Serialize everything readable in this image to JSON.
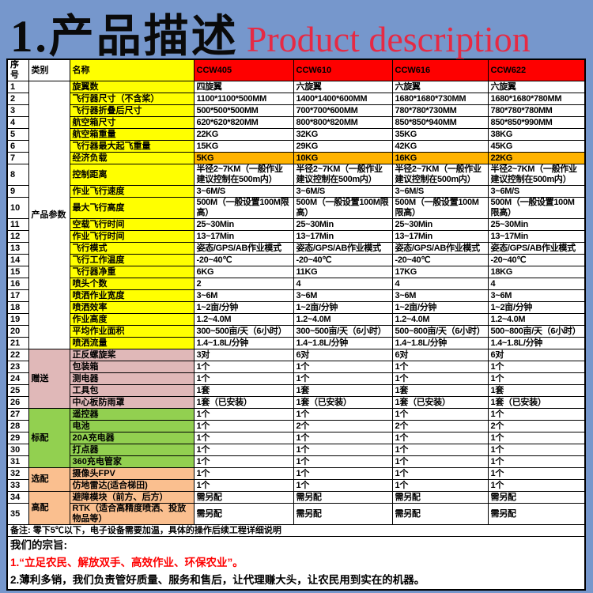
{
  "page": {
    "background": "#7697CC"
  },
  "title": {
    "zh": "1.产品描述",
    "en": "Product description",
    "en_color": "#E62A44"
  },
  "table": {
    "header": {
      "no": "序号",
      "category": "类别",
      "name": "名称",
      "models": [
        "CCW405",
        "CCW610",
        "CCW616",
        "CCW622"
      ],
      "model_bg": "#FE0000",
      "name_bg": "#FFFF00"
    },
    "groups": {
      "param": {
        "cat_bg": "#FFFFFF",
        "name_bg": "#FFFF00"
      },
      "gift": {
        "cat_bg": "#E0B8B8",
        "name_bg": "#E0B8B8"
      },
      "standard": {
        "cat_bg": "#92D050",
        "name_bg": "#92D050"
      },
      "optional": {
        "cat_bg": "#FABF8F",
        "name_bg": "#FABF8F"
      },
      "high": {
        "cat_bg": "#FABF8F",
        "name_bg": "#FABF8F"
      }
    },
    "categories": [
      {
        "label": "产品参数",
        "start": 1,
        "span": 21,
        "group": "param"
      },
      {
        "label": "赠送",
        "start": 22,
        "span": 5,
        "group": "gift"
      },
      {
        "label": "标配",
        "start": 27,
        "span": 5,
        "group": "standard"
      },
      {
        "label": "选配",
        "start": 32,
        "span": 2,
        "group": "optional"
      },
      {
        "label": "高配",
        "start": 34,
        "span": 2,
        "group": "high"
      }
    ],
    "hot_row": {
      "bg": "#FFB300",
      "text_color": "#FE0000"
    },
    "rows": [
      {
        "no": "1",
        "name": "旋翼数",
        "group": "param",
        "center": true,
        "values": [
          "四旋翼",
          "六旋翼",
          "六旋翼",
          "六旋翼"
        ]
      },
      {
        "no": "2",
        "name": "飞行器尺寸（不含桨）",
        "group": "param",
        "values": [
          "1100*1100*500MM",
          "1400*1400*600MM",
          "1680*1680*730MM",
          "1680*1680*780MM"
        ]
      },
      {
        "no": "3",
        "name": "飞行器折叠后尺寸",
        "group": "param",
        "values": [
          "500*500*500MM",
          "700*700*600MM",
          "780*780*730MM",
          "780*780*780MM"
        ]
      },
      {
        "no": "4",
        "name": "航空箱尺寸",
        "group": "param",
        "values": [
          "620*620*820MM",
          "800*800*820MM",
          "850*850*940MM",
          "850*850*990MM"
        ]
      },
      {
        "no": "5",
        "name": "航空箱重量",
        "group": "param",
        "values": [
          "22KG",
          "32KG",
          "35KG",
          "38KG"
        ]
      },
      {
        "no": "6",
        "name": "飞行器最大起飞重量",
        "group": "param",
        "values": [
          "15KG",
          "29KG",
          "42KG",
          "45KG"
        ]
      },
      {
        "no": "7",
        "name": "经济负载",
        "group": "param",
        "hot": true,
        "values": [
          "5KG",
          "10KG",
          "16KG",
          "22KG"
        ]
      },
      {
        "no": "8",
        "name": "控制距离",
        "group": "param",
        "values": [
          "半径2~7KM（一般作业建议控制在500m内）",
          "半径2~7KM（一般作业建议控制在500m内）",
          "半径2~7KM（一般作业建议控制在500m内）",
          "半径2~7KM（一般作业建议控制在500m内）"
        ]
      },
      {
        "no": "9",
        "name": "作业飞行速度",
        "group": "param",
        "values": [
          "3~6M/S",
          "3~6M/S",
          "3~6M/S",
          "3~6M/S"
        ]
      },
      {
        "no": "10",
        "name": "最大飞行高度",
        "group": "param",
        "values": [
          "500M（一般设置100M限高）",
          "500M（一般设置100M限高）",
          "500M（一般设置100M限高）",
          "500M（一般设置100M限高）"
        ]
      },
      {
        "no": "11",
        "name": "空载飞行时间",
        "group": "param",
        "values": [
          "25~30Min",
          "25~30Min",
          "25~30Min",
          "25~30Min"
        ]
      },
      {
        "no": "12",
        "name": "作业飞行时间",
        "group": "param",
        "values": [
          "13~17Min",
          "13~17Min",
          "13~17Min",
          "13~17Min"
        ]
      },
      {
        "no": "13",
        "name": "飞行模式",
        "group": "param",
        "values": [
          "姿态/GPS/AB作业模式",
          "姿态/GPS/AB作业模式",
          "姿态/GPS/AB作业模式",
          "姿态/GPS/AB作业模式"
        ]
      },
      {
        "no": "14",
        "name": "飞行工作温度",
        "group": "param",
        "values": [
          "-20~40℃",
          "-20~40℃",
          "-20~40℃",
          "-20~40℃"
        ]
      },
      {
        "no": "15",
        "name": "飞行器净重",
        "group": "param",
        "values": [
          "6KG",
          "11KG",
          "17KG",
          "18KG"
        ]
      },
      {
        "no": "16",
        "name": "喷头个数",
        "group": "param",
        "values": [
          "2",
          "4",
          "4",
          "4"
        ]
      },
      {
        "no": "17",
        "name": "喷洒作业宽度",
        "group": "param",
        "values": [
          "3~6M",
          "3~6M",
          "3~6M",
          "3~6M"
        ]
      },
      {
        "no": "18",
        "name": "喷洒效率",
        "group": "param",
        "values": [
          "1~2亩/分钟",
          "1~2亩/分钟",
          "1~2亩/分钟",
          "1~2亩/分钟"
        ]
      },
      {
        "no": "19",
        "name": "作业高度",
        "group": "param",
        "values": [
          "1.2~4.0M",
          "1.2~4.0M",
          "1.2~4.0M",
          "1.2~4.0M"
        ]
      },
      {
        "no": "20",
        "name": "平均作业面积",
        "group": "param",
        "values": [
          "300~500亩/天（6小时）",
          "300~500亩/天（6小时）",
          "500~800亩/天（6小时）",
          "500~800亩/天（6小时）"
        ]
      },
      {
        "no": "21",
        "name": "喷洒流量",
        "group": "param",
        "values": [
          "1.4~1.8L/分钟",
          "1.4~1.8L/分钟",
          "1.4~1.8L/分钟",
          "1.4~1.8L/分钟"
        ]
      },
      {
        "no": "22",
        "name": "正反螺旋桨",
        "group": "gift",
        "values": [
          "3对",
          "6对",
          "6对",
          "6对"
        ]
      },
      {
        "no": "23",
        "name": "包装箱",
        "group": "gift",
        "values": [
          "1个",
          "1个",
          "1个",
          "1个"
        ]
      },
      {
        "no": "24",
        "name": "测电器",
        "group": "gift",
        "values": [
          "1个",
          "1个",
          "1个",
          "1个"
        ]
      },
      {
        "no": "25",
        "name": "工具包",
        "group": "gift",
        "values": [
          "1套",
          "1套",
          "1套",
          "1套"
        ]
      },
      {
        "no": "26",
        "name": "中心板防雨罩",
        "group": "gift",
        "values": [
          "1套（已安装）",
          "1套（已安装）",
          "1套（已安装）",
          "1套（已安装）"
        ]
      },
      {
        "no": "27",
        "name": "遥控器",
        "group": "standard",
        "values": [
          "1个",
          "1个",
          "1个",
          "1个"
        ]
      },
      {
        "no": "28",
        "name": "电池",
        "group": "standard",
        "values": [
          "1个",
          "2个",
          "2个",
          "2个"
        ]
      },
      {
        "no": "29",
        "name": "20A充电器",
        "group": "standard",
        "values": [
          "1个",
          "1个",
          "1个",
          "1个"
        ]
      },
      {
        "no": "30",
        "name": "打点器",
        "group": "standard",
        "values": [
          "1个",
          "1个",
          "1个",
          "1个"
        ]
      },
      {
        "no": "31",
        "name": "360充电管家",
        "group": "standard",
        "values": [
          "1个",
          "1个",
          "1个",
          "1个"
        ]
      },
      {
        "no": "32",
        "name": "摄像头FPV",
        "group": "optional",
        "values": [
          "1个",
          "1个",
          "1个",
          "1个"
        ]
      },
      {
        "no": "33",
        "name": "仿地雷达(适合梯田)",
        "group": "optional",
        "values": [
          "1个",
          "1个",
          "1个",
          "1个"
        ]
      },
      {
        "no": "34",
        "name": "避障模块（前方、后方）",
        "group": "high",
        "values": [
          "需另配",
          "需另配",
          "需另配",
          "需另配"
        ]
      },
      {
        "no": "35",
        "name": "RTK（适合高精度喷洒、投放物品等）",
        "group": "high",
        "values": [
          "需另配",
          "需另配",
          "需另配",
          "需另配"
        ]
      }
    ]
  },
  "footer": {
    "remark": "备注: 零下5℃以下，电子设备需要加温，具体的操作后续工程详细说明",
    "motto_title": "我们的宗旨:",
    "motto1": "1.“立足农民、解放双手、高效作业、环保农业”。",
    "motto2": "2.薄利多销，我们负责管好质量、服务和售后，让代理赚大头，让农民用到实在的机器。"
  }
}
